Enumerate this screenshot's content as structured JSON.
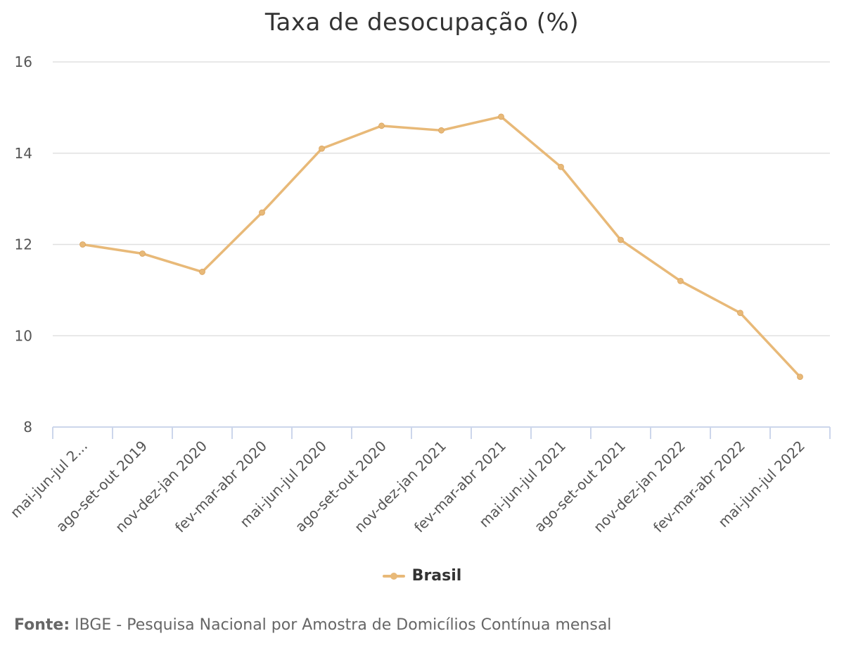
{
  "chart_data": {
    "type": "line",
    "title": "Taxa de desocupação (%)",
    "xlabel": "",
    "ylabel": "",
    "categories": [
      "mai-jun-jul 2...",
      "ago-set-out 2019",
      "nov-dez-jan 2020",
      "fev-mar-abr 2020",
      "mai-jun-jul 2020",
      "ago-set-out 2020",
      "nov-dez-jan 2021",
      "fev-mar-abr 2021",
      "mai-jun-jul 2021",
      "ago-set-out 2021",
      "nov-dez-jan 2022",
      "fev-mar-abr 2022",
      "mai-jun-jul 2022"
    ],
    "series": [
      {
        "name": "Brasil",
        "color": "#e8b978",
        "values": [
          12.0,
          11.8,
          11.4,
          12.7,
          14.1,
          14.6,
          14.5,
          14.8,
          13.7,
          12.1,
          11.2,
          10.5,
          9.1
        ]
      }
    ],
    "ylim": [
      8,
      16
    ],
    "yticks": [
      8,
      10,
      12,
      14,
      16
    ],
    "grid": true,
    "legend_position": "bottom-center"
  },
  "source": {
    "prefix": "Fonte:",
    "text": " IBGE - Pesquisa Nacional por Amostra de Domicílios Contínua mensal"
  }
}
